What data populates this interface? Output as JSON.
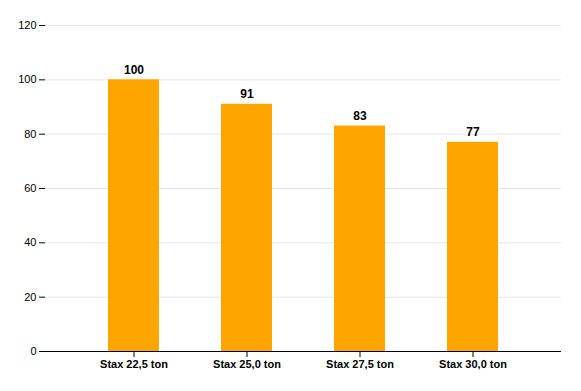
{
  "chart_data": {
    "type": "bar",
    "categories": [
      "Stax 22,5 ton",
      "Stax 25,0 ton",
      "Stax 27,5 ton",
      "Stax 30,0 ton"
    ],
    "values": [
      100,
      91,
      83,
      77
    ],
    "color": "#FFA500",
    "ylim": [
      0,
      120
    ],
    "yticks": [
      0,
      20,
      40,
      60,
      80,
      100,
      120
    ],
    "grid": true,
    "data_labels": true
  }
}
